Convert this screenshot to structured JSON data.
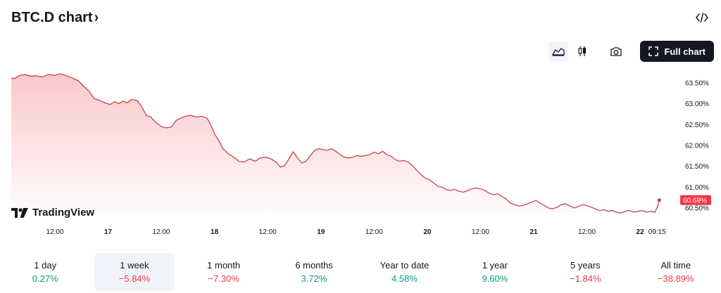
{
  "header": {
    "title": "BTC.D chart",
    "title_chevron": "›"
  },
  "toolbar": {
    "full_chart_label": "Full chart"
  },
  "icons": {
    "embed": "code-icon",
    "area": "area-chart-icon",
    "candles": "candles-icon",
    "snapshot": "camera-icon",
    "fullscreen": "fullscreen-icon"
  },
  "watermark": {
    "text": "TradingView"
  },
  "chart_data": {
    "type": "area",
    "title": "BTC.D",
    "y_axis_side": "right",
    "y_ticks": [
      60.5,
      61.0,
      61.5,
      62.0,
      62.5,
      63.0,
      63.5
    ],
    "y_tick_labels": [
      "60.50%",
      "61.00%",
      "61.50%",
      "62.00%",
      "62.50%",
      "63.00%",
      "63.50%"
    ],
    "ylim": [
      60.4,
      63.75
    ],
    "x_ticks": [
      {
        "label": "12:00",
        "t": 0.5
      },
      {
        "label": "17",
        "t": 1.0
      },
      {
        "label": "12:00",
        "t": 1.5
      },
      {
        "label": "18",
        "t": 2.0
      },
      {
        "label": "12:00",
        "t": 2.5
      },
      {
        "label": "19",
        "t": 3.0
      },
      {
        "label": "12:00",
        "t": 3.5
      },
      {
        "label": "20",
        "t": 4.0
      },
      {
        "label": "12:00",
        "t": 4.5
      },
      {
        "label": "21",
        "t": 5.0
      },
      {
        "label": "12:00",
        "t": 5.5
      },
      {
        "label": "22",
        "t": 6.0
      },
      {
        "label": "09:15",
        "t": 6.16
      }
    ],
    "xlim": [
      0.09,
      6.35
    ],
    "series": [
      {
        "points": [
          [
            0.09,
            63.62
          ],
          [
            0.12,
            63.6
          ],
          [
            0.17,
            63.68
          ],
          [
            0.22,
            63.7
          ],
          [
            0.27,
            63.66
          ],
          [
            0.32,
            63.67
          ],
          [
            0.38,
            63.64
          ],
          [
            0.44,
            63.7
          ],
          [
            0.5,
            63.68
          ],
          [
            0.55,
            63.72
          ],
          [
            0.6,
            63.68
          ],
          [
            0.66,
            63.62
          ],
          [
            0.72,
            63.55
          ],
          [
            0.77,
            63.42
          ],
          [
            0.82,
            63.3
          ],
          [
            0.87,
            63.12
          ],
          [
            0.92,
            63.08
          ],
          [
            0.97,
            63.02
          ],
          [
            1.02,
            62.98
          ],
          [
            1.06,
            63.05
          ],
          [
            1.1,
            63.0
          ],
          [
            1.14,
            63.06
          ],
          [
            1.18,
            63.02
          ],
          [
            1.22,
            63.1
          ],
          [
            1.27,
            63.08
          ],
          [
            1.31,
            62.95
          ],
          [
            1.36,
            62.72
          ],
          [
            1.4,
            62.68
          ],
          [
            1.45,
            62.55
          ],
          [
            1.5,
            62.45
          ],
          [
            1.55,
            62.42
          ],
          [
            1.6,
            62.45
          ],
          [
            1.64,
            62.6
          ],
          [
            1.68,
            62.65
          ],
          [
            1.73,
            62.7
          ],
          [
            1.78,
            62.72
          ],
          [
            1.83,
            62.68
          ],
          [
            1.88,
            62.7
          ],
          [
            1.93,
            62.65
          ],
          [
            1.96,
            62.52
          ],
          [
            2.0,
            62.28
          ],
          [
            2.04,
            62.12
          ],
          [
            2.08,
            61.92
          ],
          [
            2.13,
            61.8
          ],
          [
            2.18,
            61.72
          ],
          [
            2.23,
            61.62
          ],
          [
            2.28,
            61.6
          ],
          [
            2.33,
            61.68
          ],
          [
            2.38,
            61.62
          ],
          [
            2.43,
            61.7
          ],
          [
            2.48,
            61.72
          ],
          [
            2.53,
            61.68
          ],
          [
            2.58,
            61.6
          ],
          [
            2.62,
            61.48
          ],
          [
            2.66,
            61.52
          ],
          [
            2.7,
            61.68
          ],
          [
            2.74,
            61.85
          ],
          [
            2.78,
            61.7
          ],
          [
            2.82,
            61.58
          ],
          [
            2.86,
            61.62
          ],
          [
            2.9,
            61.75
          ],
          [
            2.94,
            61.88
          ],
          [
            2.98,
            61.92
          ],
          [
            3.02,
            61.9
          ],
          [
            3.06,
            61.88
          ],
          [
            3.1,
            61.92
          ],
          [
            3.14,
            61.86
          ],
          [
            3.18,
            61.78
          ],
          [
            3.22,
            61.72
          ],
          [
            3.26,
            61.7
          ],
          [
            3.3,
            61.72
          ],
          [
            3.34,
            61.76
          ],
          [
            3.38,
            61.74
          ],
          [
            3.42,
            61.76
          ],
          [
            3.46,
            61.78
          ],
          [
            3.5,
            61.84
          ],
          [
            3.54,
            61.8
          ],
          [
            3.58,
            61.86
          ],
          [
            3.62,
            61.78
          ],
          [
            3.66,
            61.74
          ],
          [
            3.7,
            61.66
          ],
          [
            3.74,
            61.62
          ],
          [
            3.78,
            61.64
          ],
          [
            3.82,
            61.6
          ],
          [
            3.86,
            61.52
          ],
          [
            3.9,
            61.4
          ],
          [
            3.94,
            61.3
          ],
          [
            3.98,
            61.22
          ],
          [
            4.02,
            61.18
          ],
          [
            4.06,
            61.1
          ],
          [
            4.1,
            61.02
          ],
          [
            4.14,
            61.0
          ],
          [
            4.18,
            60.94
          ],
          [
            4.22,
            60.92
          ],
          [
            4.26,
            60.95
          ],
          [
            4.3,
            60.9
          ],
          [
            4.34,
            60.88
          ],
          [
            4.38,
            60.92
          ],
          [
            4.42,
            60.96
          ],
          [
            4.46,
            60.98
          ],
          [
            4.5,
            60.96
          ],
          [
            4.54,
            60.92
          ],
          [
            4.58,
            60.86
          ],
          [
            4.62,
            60.82
          ],
          [
            4.66,
            60.84
          ],
          [
            4.7,
            60.78
          ],
          [
            4.74,
            60.72
          ],
          [
            4.78,
            60.62
          ],
          [
            4.82,
            60.58
          ],
          [
            4.86,
            60.55
          ],
          [
            4.9,
            60.56
          ],
          [
            4.94,
            60.6
          ],
          [
            4.98,
            60.64
          ],
          [
            5.02,
            60.68
          ],
          [
            5.06,
            60.62
          ],
          [
            5.1,
            60.56
          ],
          [
            5.14,
            60.5
          ],
          [
            5.18,
            60.48
          ],
          [
            5.22,
            60.52
          ],
          [
            5.26,
            60.58
          ],
          [
            5.3,
            60.6
          ],
          [
            5.34,
            60.55
          ],
          [
            5.38,
            60.5
          ],
          [
            5.42,
            60.54
          ],
          [
            5.46,
            60.58
          ],
          [
            5.5,
            60.56
          ],
          [
            5.54,
            60.52
          ],
          [
            5.58,
            60.48
          ],
          [
            5.62,
            60.44
          ],
          [
            5.66,
            60.46
          ],
          [
            5.7,
            60.42
          ],
          [
            5.74,
            60.44
          ],
          [
            5.78,
            60.4
          ],
          [
            5.82,
            60.38
          ],
          [
            5.86,
            60.42
          ],
          [
            5.9,
            60.44
          ],
          [
            5.94,
            60.4
          ],
          [
            5.98,
            60.42
          ],
          [
            6.02,
            60.44
          ],
          [
            6.06,
            60.4
          ],
          [
            6.1,
            60.42
          ],
          [
            6.14,
            60.4
          ],
          [
            6.17,
            60.58
          ],
          [
            6.18,
            60.69
          ]
        ]
      }
    ],
    "last_value_label": "60.69%",
    "line_color": "#c4454a",
    "fill_color": "#f7b6ba",
    "label_color": "#f23645",
    "grid": false,
    "legend": "none"
  },
  "periods": [
    {
      "label": "1 day",
      "change": "0.27%",
      "direction": "pos",
      "active": false
    },
    {
      "label": "1 week",
      "change": "−5.84%",
      "direction": "neg",
      "active": true
    },
    {
      "label": "1 month",
      "change": "−7.30%",
      "direction": "neg",
      "active": false
    },
    {
      "label": "6 months",
      "change": "3.72%",
      "direction": "pos",
      "active": false
    },
    {
      "label": "Year to date",
      "change": "4.58%",
      "direction": "pos",
      "active": false
    },
    {
      "label": "1 year",
      "change": "9.60%",
      "direction": "pos",
      "active": false
    },
    {
      "label": "5 years",
      "change": "−1.84%",
      "direction": "neg",
      "active": false
    },
    {
      "label": "All time",
      "change": "−38.89%",
      "direction": "neg",
      "active": false
    }
  ]
}
